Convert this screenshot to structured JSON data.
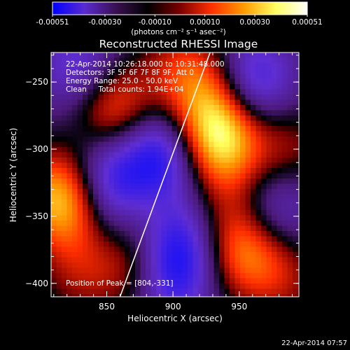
{
  "chart_data": {
    "type": "heatmap",
    "title": "Reconstructed RHESSI Image",
    "xlabel": "Heliocentric X (arcsec)",
    "ylabel": "Heliocentric Y (arcsec)",
    "xlim": [
      808,
      995
    ],
    "ylim": [
      -410,
      -228
    ],
    "x_ticks": [
      850,
      900,
      950
    ],
    "y_ticks": [
      -250,
      -300,
      -350,
      -400
    ],
    "colorbar": {
      "range": [
        -0.00051,
        0.00051
      ],
      "ticks": [
        "-0.00051",
        "-0.00030",
        "-0.00010",
        "0.00010",
        "0.00030",
        "0.00051"
      ],
      "units_label": "(photons cm⁻² s⁻¹ asec⁻²)",
      "colors": [
        "#0000ff",
        "#5a2bd0",
        "#3a1050",
        "#000000",
        "#7a0000",
        "#ff3000",
        "#ff9a00",
        "#ffff60",
        "#ffffff"
      ]
    },
    "annotations": {
      "time": "22-Apr-2014 10:26:18.000 to 10:31:48.000",
      "detectors": "Detectors: 3F 5F 6F 7F 8F 9F, Att 0",
      "energy": "Energy Range: 25.0 - 50.0 keV",
      "clean": "Clean     Total counts: 1.94E+04",
      "peak": "Position of Peak = [804,-331]"
    },
    "limb_line": {
      "x": [
        860,
        928
      ],
      "y": [
        -410,
        -228
      ]
    },
    "sources": [
      {
        "x": 935,
        "y": -290,
        "value": 0.00051
      },
      {
        "x": 855,
        "y": -270,
        "value": 0.00034
      },
      {
        "x": 815,
        "y": -335,
        "value": 0.00045
      },
      {
        "x": 955,
        "y": -375,
        "value": 0.00036
      },
      {
        "x": 925,
        "y": -255,
        "value": 0.00022
      },
      {
        "x": 870,
        "y": -385,
        "value": 0.00022
      },
      {
        "x": 878,
        "y": -355,
        "value": 0.00016
      },
      {
        "x": 945,
        "y": -335,
        "value": 0.00014
      },
      {
        "x": 985,
        "y": -300,
        "value": 0.00018
      },
      {
        "x": 905,
        "y": -240,
        "value": 0.00016
      },
      {
        "x": 985,
        "y": -395,
        "value": 0.00015
      },
      {
        "x": 830,
        "y": -395,
        "value": 0.00013
      },
      {
        "x": 835,
        "y": -360,
        "value": 0.00014
      },
      {
        "x": 890,
        "y": -305,
        "value": -0.00036
      },
      {
        "x": 850,
        "y": -320,
        "value": -0.00028
      },
      {
        "x": 900,
        "y": -370,
        "value": -0.00035
      },
      {
        "x": 960,
        "y": -250,
        "value": -0.00032
      },
      {
        "x": 830,
        "y": -240,
        "value": -0.00024
      },
      {
        "x": 975,
        "y": -345,
        "value": -0.00026
      },
      {
        "x": 900,
        "y": -400,
        "value": -0.00022
      },
      {
        "x": 855,
        "y": -355,
        "value": -0.0002
      }
    ]
  },
  "footer": {
    "timestamp": "22-Apr-2014 07:57"
  }
}
